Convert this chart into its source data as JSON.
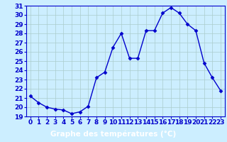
{
  "hours": [
    0,
    1,
    2,
    3,
    4,
    5,
    6,
    7,
    8,
    9,
    10,
    11,
    12,
    13,
    14,
    15,
    16,
    17,
    18,
    19,
    20,
    21,
    22,
    23
  ],
  "temps": [
    21.2,
    20.5,
    20.0,
    19.8,
    19.7,
    19.3,
    19.5,
    20.1,
    23.2,
    23.8,
    26.5,
    28.0,
    25.3,
    25.3,
    28.3,
    28.3,
    30.2,
    30.8,
    30.2,
    29.0,
    28.3,
    24.8,
    23.2,
    21.8
  ],
  "line_color": "#0000cc",
  "marker": "D",
  "markersize": 2.5,
  "linewidth": 1.0,
  "bg_color": "#cceeff",
  "grid_color": "#aacccc",
  "xlabel": "Graphe des températures (°C)",
  "xlabel_color": "#ffffff",
  "xlabel_bg": "#0000cc",
  "ylim": [
    19,
    31
  ],
  "yticks": [
    19,
    20,
    21,
    22,
    23,
    24,
    25,
    26,
    27,
    28,
    29,
    30,
    31
  ],
  "xticks": [
    0,
    1,
    2,
    3,
    4,
    5,
    6,
    7,
    8,
    9,
    10,
    11,
    12,
    13,
    14,
    15,
    16,
    17,
    18,
    19,
    20,
    21,
    22,
    23
  ],
  "tick_fontsize": 6.5,
  "xlabel_fontsize": 7.5,
  "ytick_fontsize": 6.5
}
